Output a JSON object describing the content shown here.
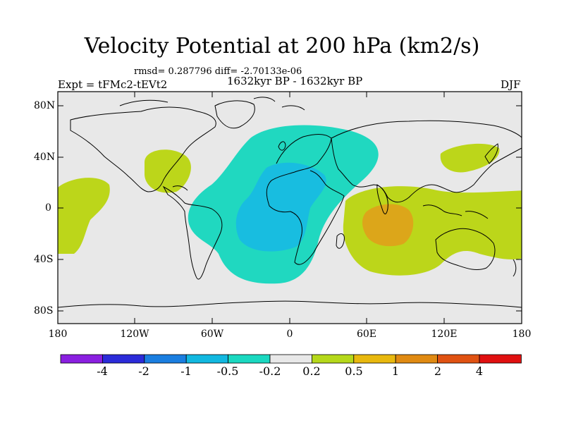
{
  "header": {
    "title": "Velocity Potential at 200 hPa (km2/s)",
    "stats": "rmsd= 0.287796 diff= -2.70133e-06",
    "experiment": "Expt = tFMc2-tEVt2",
    "period": "1632kyr BP - 1632kyr BP",
    "season": "DJF"
  },
  "axes": {
    "lat_labels": [
      "80N",
      "40N",
      "0",
      "40S",
      "80S"
    ],
    "lon_labels": [
      "180",
      "120W",
      "60W",
      "0",
      "60E",
      "120E",
      "180"
    ]
  },
  "colorbar": {
    "labels": [
      "-4",
      "-2",
      "-1",
      "-0.5",
      "-0.2",
      "0.2",
      "0.5",
      "1",
      "2",
      "4"
    ],
    "colors": [
      "#8a1fe0",
      "#2b2bd9",
      "#1a7ee0",
      "#12b8e0",
      "#1ad8c0",
      "#e8e8e8",
      "#b5d81a",
      "#e8b80e",
      "#e08a12",
      "#e05212",
      "#e01010"
    ]
  },
  "map_colors": {
    "background": "#e8e8e8",
    "positive_weak": "#bcd61a",
    "positive_mid": "#dca61a",
    "negative_weak": "#20d8c0",
    "negative_mid": "#18bde0"
  }
}
